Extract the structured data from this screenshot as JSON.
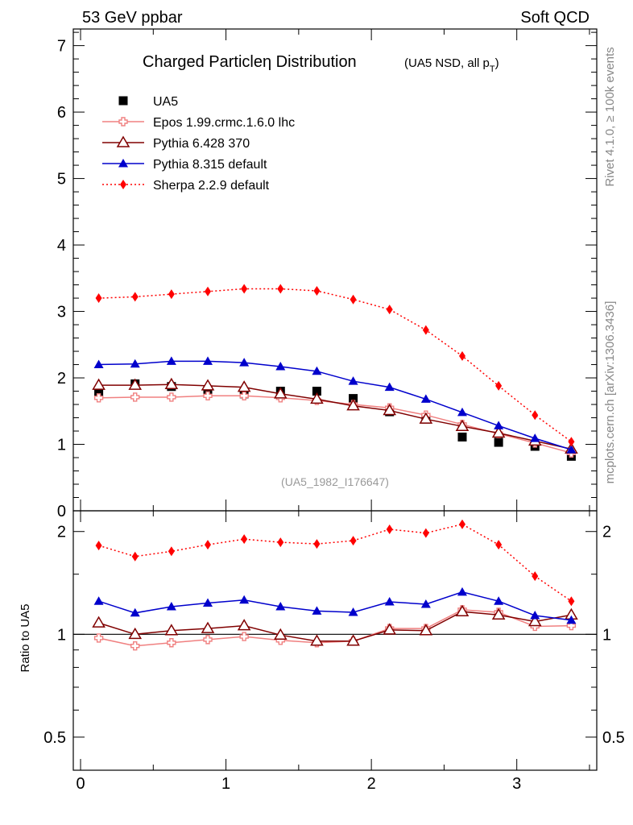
{
  "header": {
    "left": "53 GeV ppbar",
    "right": "Soft QCD"
  },
  "side": {
    "rivet": "Rivet 4.1.0, ≥ 100k events",
    "mcplots": "mcplots.cern.ch [arXiv:1306.3436]"
  },
  "chart_data": {
    "type": "line",
    "title": "Charged Particleη Distribution",
    "subtitle": "(UA5 NSD, all p_T)",
    "analysis_id": "(UA5_1982_I176647)",
    "xlabel": "",
    "ylabel": "",
    "ratio_ylabel": "Ratio to UA5",
    "xlim": [
      -0.05,
      3.55
    ],
    "ylim": [
      0,
      7.25
    ],
    "ratio_ylim": [
      0.4,
      2.3
    ],
    "x_ticks": [
      0,
      1,
      2,
      3
    ],
    "y_ticks": [
      0,
      1,
      2,
      3,
      4,
      5,
      6,
      7
    ],
    "ratio_ticks": [
      0.5,
      1,
      2
    ],
    "ratio_tick_labels": [
      "0.5",
      "1",
      "2"
    ],
    "legend_position": "top-left",
    "x": [
      0.125,
      0.375,
      0.625,
      0.875,
      1.125,
      1.375,
      1.625,
      1.875,
      2.125,
      2.375,
      2.625,
      2.875,
      3.125,
      3.375
    ],
    "series": [
      {
        "name": "UA5",
        "color": "#000000",
        "marker": "square",
        "line": "none",
        "values": [
          1.76,
          1.91,
          1.87,
          1.82,
          1.76,
          1.8,
          1.8,
          1.69,
          1.49,
          1.38,
          1.11,
          1.03,
          0.97,
          0.82
        ]
      },
      {
        "name": "Epos 1.99.crmc.1.6.0 lhc",
        "color": "#f08080",
        "marker": "cross",
        "line": "solid",
        "values": [
          1.7,
          1.71,
          1.71,
          1.73,
          1.73,
          1.7,
          1.66,
          1.6,
          1.55,
          1.44,
          1.3,
          1.16,
          1.02,
          0.87
        ],
        "ratio": [
          0.975,
          0.925,
          0.945,
          0.965,
          0.985,
          0.96,
          0.945,
          0.955,
          1.04,
          1.04,
          1.18,
          1.16,
          1.055,
          1.06
        ]
      },
      {
        "name": "Pythia 6.428 370",
        "color": "#800000",
        "marker": "open-triangle",
        "line": "solid",
        "values": [
          1.89,
          1.89,
          1.9,
          1.88,
          1.86,
          1.76,
          1.68,
          1.58,
          1.51,
          1.38,
          1.27,
          1.17,
          1.05,
          0.93
        ],
        "ratio": [
          1.08,
          1.0,
          1.025,
          1.04,
          1.06,
          0.995,
          0.955,
          0.955,
          1.03,
          1.025,
          1.165,
          1.14,
          1.09,
          1.14
        ]
      },
      {
        "name": "Pythia 8.315 default",
        "color": "#0000cc",
        "marker": "triangle",
        "line": "solid",
        "values": [
          2.2,
          2.21,
          2.25,
          2.25,
          2.23,
          2.17,
          2.1,
          1.95,
          1.86,
          1.68,
          1.48,
          1.28,
          1.09,
          0.92
        ],
        "ratio": [
          1.25,
          1.155,
          1.205,
          1.235,
          1.26,
          1.205,
          1.17,
          1.16,
          1.245,
          1.225,
          1.33,
          1.25,
          1.135,
          1.1
        ]
      },
      {
        "name": "Sherpa 2.2.9 default",
        "color": "#ff0000",
        "marker": "diamond",
        "line": "dotted",
        "values": [
          3.2,
          3.22,
          3.26,
          3.3,
          3.34,
          3.34,
          3.31,
          3.18,
          3.03,
          2.72,
          2.33,
          1.88,
          1.44,
          1.04
        ],
        "ratio": [
          1.82,
          1.69,
          1.75,
          1.83,
          1.9,
          1.86,
          1.84,
          1.88,
          2.03,
          1.98,
          2.1,
          1.83,
          1.48,
          1.25
        ]
      }
    ]
  }
}
